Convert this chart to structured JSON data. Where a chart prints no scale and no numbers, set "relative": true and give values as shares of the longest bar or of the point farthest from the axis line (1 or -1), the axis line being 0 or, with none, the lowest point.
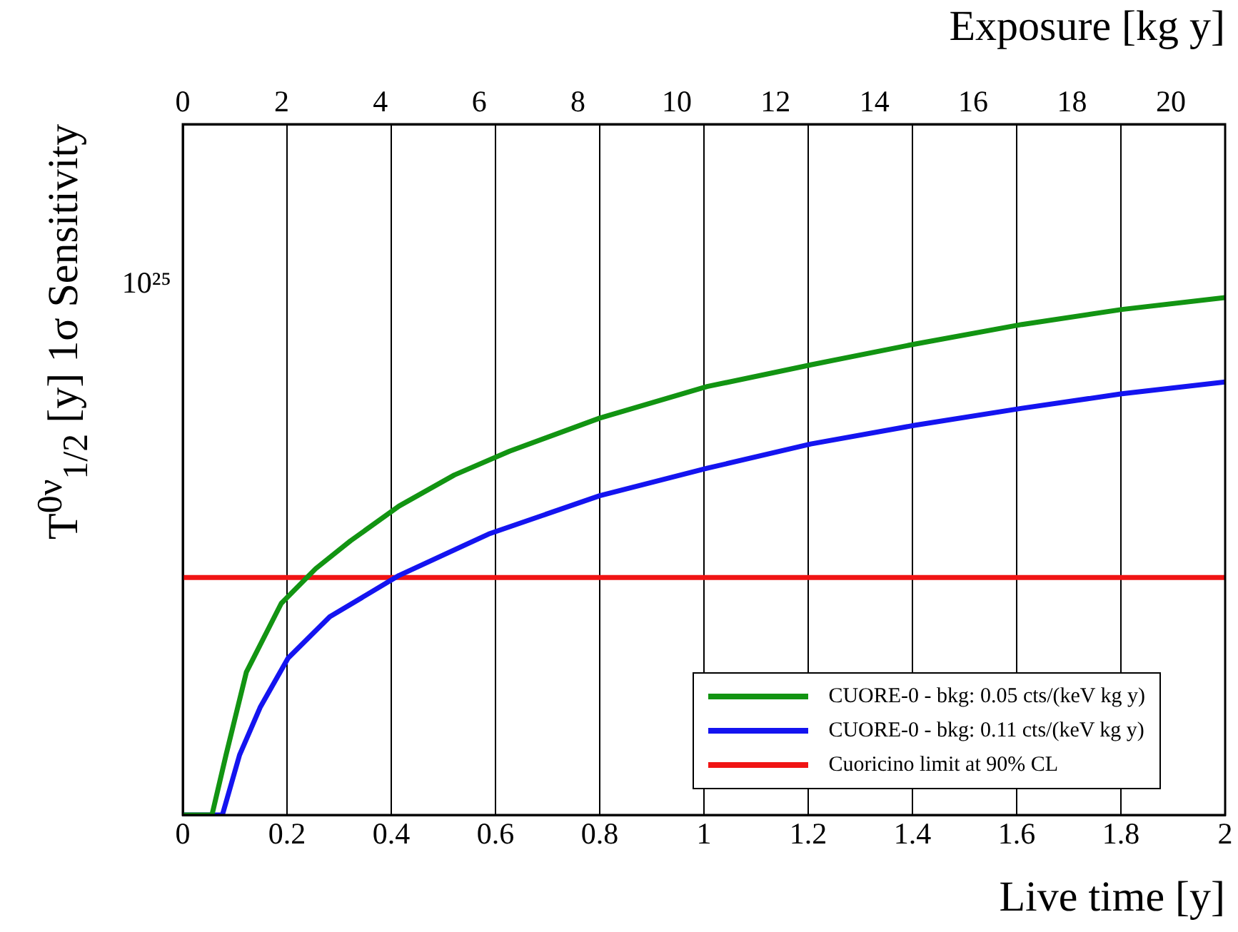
{
  "chart_data": {
    "type": "line",
    "xlabel": "Live time [y]",
    "x2label": "Exposure [kg y]",
    "ylabel": "T$^{0ν}$$_{1/2}$ [y]   1σ  Sensitivity",
    "xlim": [
      0,
      2
    ],
    "xticks": [
      0,
      0.2,
      0.4,
      0.6,
      0.8,
      1,
      1.2,
      1.4,
      1.6,
      1.8,
      2
    ],
    "x2lim": [
      0,
      21.1
    ],
    "x2ticks": [
      0,
      2,
      4,
      6,
      8,
      10,
      12,
      14,
      16,
      18,
      20
    ],
    "relative": true,
    "annotations": [
      "10²⁵"
    ],
    "grid": "x",
    "legend": "bottom right",
    "marker": "none",
    "line_style": "solid",
    "series": [
      {
        "name": "CUORE-0 - bkg: 0.05 cts/(keV kg y)",
        "color": "#129412",
        "x": [
          0,
          0.056,
          0.083,
          0.122,
          0.189,
          0.255,
          0.322,
          0.415,
          0.521,
          0.627,
          0.8,
          1.006,
          1.205,
          1.404,
          1.61,
          1.802,
          2
        ],
        "values": [
          0,
          0,
          0.116,
          0.276,
          0.409,
          0.476,
          0.53,
          0.597,
          0.657,
          0.703,
          0.767,
          0.828,
          0.87,
          0.91,
          0.948,
          0.977,
          1
        ]
      },
      {
        "name": "CUORE-0 - bkg: 0.11 cts/(keV kg y)",
        "color": "#1414f0",
        "x": [
          0,
          0.076,
          0.109,
          0.149,
          0.202,
          0.282,
          0.415,
          0.587,
          0.8,
          1.006,
          1.205,
          1.404,
          1.61,
          1.802,
          2
        ],
        "values": [
          0,
          0,
          0.116,
          0.209,
          0.303,
          0.383,
          0.463,
          0.543,
          0.617,
          0.67,
          0.717,
          0.753,
          0.786,
          0.814,
          0.837
        ]
      },
      {
        "name": "Cuoricino limit at 90% CL",
        "color": "#f01414",
        "x": [
          0,
          2
        ],
        "values": [
          0.459,
          0.459
        ]
      }
    ]
  }
}
